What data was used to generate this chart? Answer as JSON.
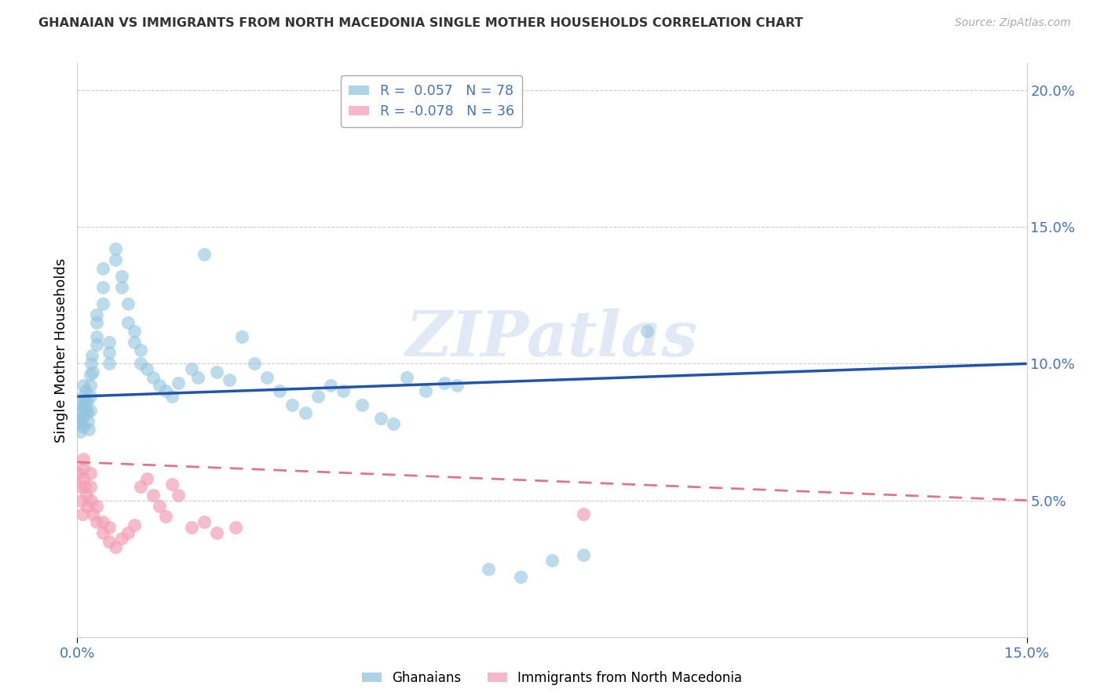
{
  "title": "GHANAIAN VS IMMIGRANTS FROM NORTH MACEDONIA SINGLE MOTHER HOUSEHOLDS CORRELATION CHART",
  "source": "Source: ZipAtlas.com",
  "ylabel": "Single Mother Households",
  "xlim": [
    0.0,
    0.15
  ],
  "ylim": [
    0.0,
    0.21
  ],
  "yticks": [
    0.05,
    0.1,
    0.15,
    0.2
  ],
  "ytick_labels": [
    "5.0%",
    "10.0%",
    "15.0%",
    "20.0%"
  ],
  "ghanaian_color": "#92c5de",
  "macedonia_color": "#f4a0b5",
  "trend_blue": "#2255aa",
  "trend_pink": "#dd7788",
  "watermark": "ZIPatlas",
  "blue_trend_x": [
    0.0,
    0.15
  ],
  "blue_trend_y": [
    0.088,
    0.1
  ],
  "pink_trend_x": [
    0.0,
    0.15
  ],
  "pink_trend_y": [
    0.064,
    0.05
  ],
  "ghanaian_x": [
    0.0002,
    0.0003,
    0.0004,
    0.0005,
    0.0006,
    0.0007,
    0.0008,
    0.0009,
    0.001,
    0.001,
    0.001,
    0.0012,
    0.0013,
    0.0014,
    0.0015,
    0.0016,
    0.0017,
    0.0018,
    0.002,
    0.002,
    0.002,
    0.002,
    0.0022,
    0.0023,
    0.0024,
    0.003,
    0.003,
    0.003,
    0.003,
    0.004,
    0.004,
    0.004,
    0.005,
    0.005,
    0.005,
    0.006,
    0.006,
    0.007,
    0.007,
    0.008,
    0.008,
    0.009,
    0.009,
    0.01,
    0.01,
    0.011,
    0.012,
    0.013,
    0.014,
    0.015,
    0.016,
    0.018,
    0.019,
    0.02,
    0.022,
    0.024,
    0.026,
    0.028,
    0.03,
    0.032,
    0.034,
    0.036,
    0.038,
    0.04,
    0.042,
    0.045,
    0.048,
    0.05,
    0.052,
    0.055,
    0.058,
    0.06,
    0.065,
    0.07,
    0.075,
    0.08,
    0.09
  ],
  "ghanaian_y": [
    0.082,
    0.086,
    0.079,
    0.075,
    0.078,
    0.083,
    0.08,
    0.077,
    0.085,
    0.088,
    0.092,
    0.087,
    0.09,
    0.083,
    0.086,
    0.082,
    0.079,
    0.076,
    0.088,
    0.083,
    0.092,
    0.096,
    0.1,
    0.103,
    0.097,
    0.11,
    0.107,
    0.115,
    0.118,
    0.128,
    0.122,
    0.135,
    0.1,
    0.104,
    0.108,
    0.142,
    0.138,
    0.132,
    0.128,
    0.115,
    0.122,
    0.108,
    0.112,
    0.1,
    0.105,
    0.098,
    0.095,
    0.092,
    0.09,
    0.088,
    0.093,
    0.098,
    0.095,
    0.14,
    0.097,
    0.094,
    0.11,
    0.1,
    0.095,
    0.09,
    0.085,
    0.082,
    0.088,
    0.092,
    0.09,
    0.085,
    0.08,
    0.078,
    0.095,
    0.09,
    0.093,
    0.092,
    0.025,
    0.022,
    0.028,
    0.03,
    0.112
  ],
  "macedonia_x": [
    0.0002,
    0.0004,
    0.0006,
    0.0008,
    0.001,
    0.001,
    0.001,
    0.0012,
    0.0014,
    0.0016,
    0.002,
    0.002,
    0.0022,
    0.0024,
    0.003,
    0.003,
    0.004,
    0.004,
    0.005,
    0.005,
    0.006,
    0.007,
    0.008,
    0.009,
    0.01,
    0.011,
    0.012,
    0.013,
    0.014,
    0.015,
    0.016,
    0.018,
    0.02,
    0.022,
    0.025,
    0.08
  ],
  "macedonia_y": [
    0.06,
    0.055,
    0.05,
    0.045,
    0.062,
    0.058,
    0.065,
    0.055,
    0.052,
    0.048,
    0.06,
    0.055,
    0.05,
    0.045,
    0.042,
    0.048,
    0.038,
    0.042,
    0.035,
    0.04,
    0.033,
    0.036,
    0.038,
    0.041,
    0.055,
    0.058,
    0.052,
    0.048,
    0.044,
    0.056,
    0.052,
    0.04,
    0.042,
    0.038,
    0.04,
    0.045
  ]
}
